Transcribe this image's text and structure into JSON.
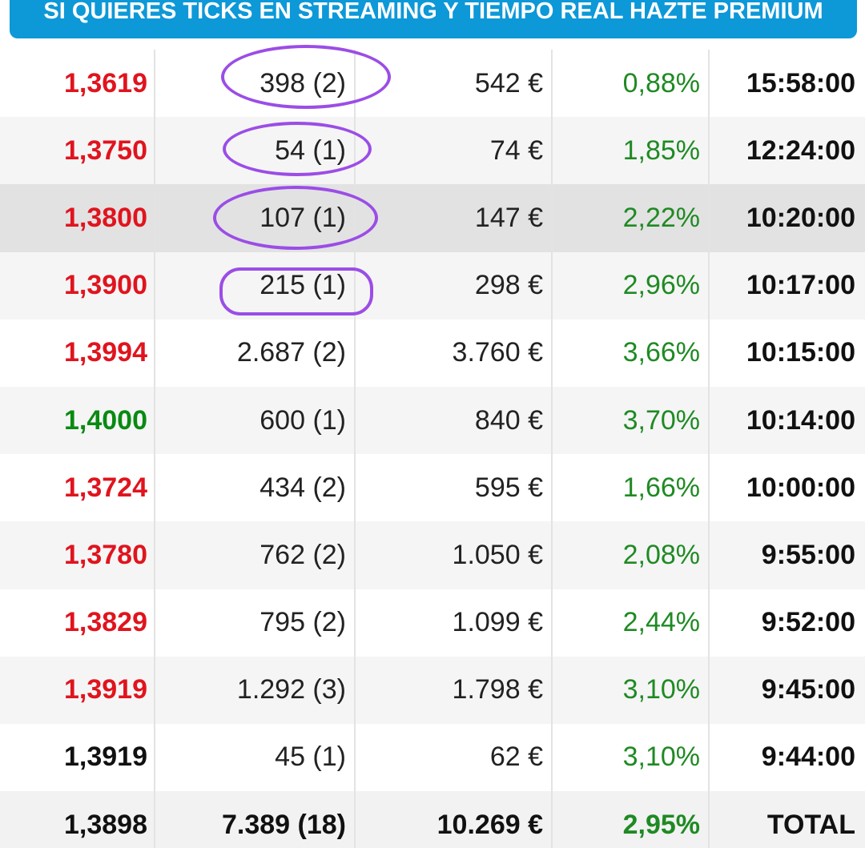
{
  "banner": {
    "text": "SI QUIERES TICKS EN STREAMING Y TIEMPO REAL HAZTE PREMIUM"
  },
  "rows": [
    {
      "price": "1,3619",
      "price_color": "red",
      "volume": "398 (2)",
      "amount": "542 €",
      "pct": "0,88%",
      "time": "15:58:00",
      "bg": "white",
      "circled": true
    },
    {
      "price": "1,3750",
      "price_color": "red",
      "volume": "54 (1)",
      "amount": "74 €",
      "pct": "1,85%",
      "time": "12:24:00",
      "bg": "light",
      "circled": true
    },
    {
      "price": "1,3800",
      "price_color": "red",
      "volume": "107 (1)",
      "amount": "147 €",
      "pct": "2,22%",
      "time": "10:20:00",
      "bg": "hl",
      "circled": true
    },
    {
      "price": "1,3900",
      "price_color": "red",
      "volume": "215 (1)",
      "amount": "298 €",
      "pct": "2,96%",
      "time": "10:17:00",
      "bg": "light",
      "circled": true
    },
    {
      "price": "1,3994",
      "price_color": "red",
      "volume": "2.687 (2)",
      "amount": "3.760 €",
      "pct": "3,66%",
      "time": "10:15:00",
      "bg": "white",
      "circled": false
    },
    {
      "price": "1,4000",
      "price_color": "green",
      "volume": "600 (1)",
      "amount": "840 €",
      "pct": "3,70%",
      "time": "10:14:00",
      "bg": "light",
      "circled": false
    },
    {
      "price": "1,3724",
      "price_color": "red",
      "volume": "434 (2)",
      "amount": "595 €",
      "pct": "1,66%",
      "time": "10:00:00",
      "bg": "white",
      "circled": false
    },
    {
      "price": "1,3780",
      "price_color": "red",
      "volume": "762 (2)",
      "amount": "1.050 €",
      "pct": "2,08%",
      "time": "9:55:00",
      "bg": "light",
      "circled": false
    },
    {
      "price": "1,3829",
      "price_color": "red",
      "volume": "795 (2)",
      "amount": "1.099 €",
      "pct": "2,44%",
      "time": "9:52:00",
      "bg": "white",
      "circled": false
    },
    {
      "price": "1,3919",
      "price_color": "red",
      "volume": "1.292 (3)",
      "amount": "1.798 €",
      "pct": "3,10%",
      "time": "9:45:00",
      "bg": "light",
      "circled": false
    },
    {
      "price": "1,3919",
      "price_color": "black",
      "volume": "45 (1)",
      "amount": "62 €",
      "pct": "3,10%",
      "time": "9:44:00",
      "bg": "white",
      "circled": false
    }
  ],
  "total": {
    "price": "1,3898",
    "volume": "7.389 (18)",
    "amount": "10.269 €",
    "pct": "2,95%",
    "label": "TOTAL"
  },
  "colors": {
    "banner": "#0d98d8",
    "red": "#e0141e",
    "green": "#0a8a12",
    "pct_green": "#1f8a23",
    "annotation": "#9b4de6"
  }
}
